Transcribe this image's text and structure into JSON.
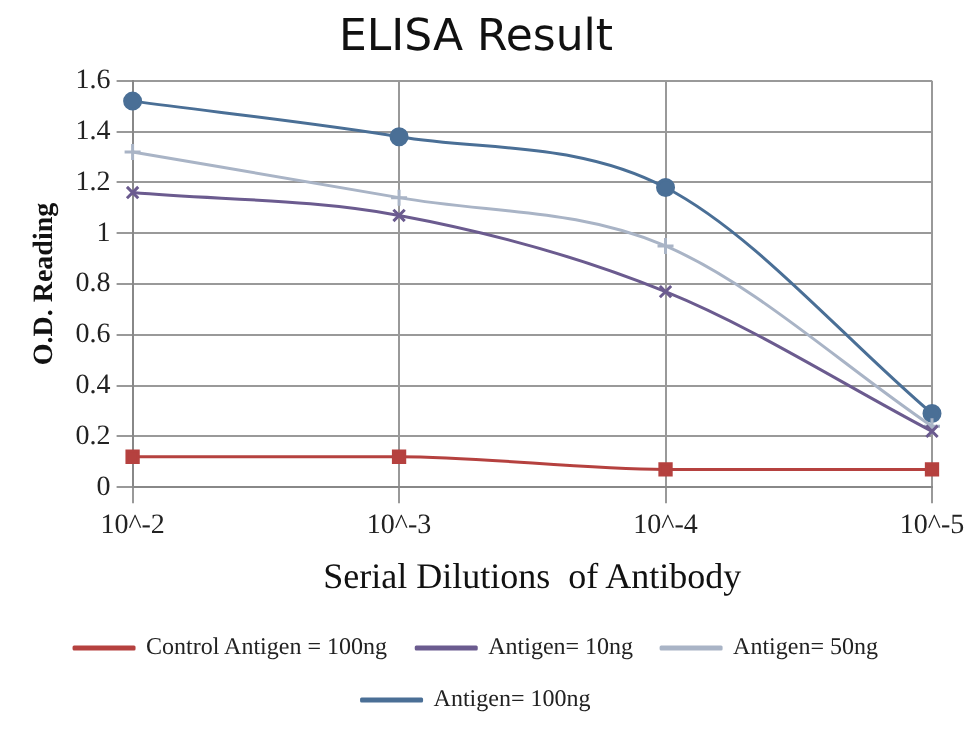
{
  "chart_data": {
    "type": "line",
    "title": "ELISA Result",
    "xlabel": "Serial Dilutions  of Antibody",
    "ylabel": "O.D. Reading",
    "categories": [
      "10^-2",
      "10^-3",
      "10^-4",
      "10^-5"
    ],
    "series": [
      {
        "name": "Control Antigen = 100ng",
        "color": "#b5413f",
        "marker": "square",
        "values": [
          0.12,
          0.12,
          0.07,
          0.07
        ]
      },
      {
        "name": "Antigen= 10ng",
        "color": "#6b5b8f",
        "marker": "cross",
        "values": [
          1.16,
          1.07,
          0.77,
          0.22
        ]
      },
      {
        "name": "Antigen= 50ng",
        "color": "#a9b4c6",
        "marker": "plus",
        "values": [
          1.32,
          1.14,
          0.95,
          0.24
        ]
      },
      {
        "name": "Antigen= 100ng",
        "color": "#4a6f96",
        "marker": "circle",
        "values": [
          1.52,
          1.38,
          1.18,
          0.29
        ]
      }
    ],
    "ylim": [
      0,
      1.6
    ],
    "yticks": [
      0,
      0.2,
      0.4,
      0.6,
      0.8,
      1,
      1.2,
      1.4,
      1.6
    ],
    "grid": true,
    "legend": "bottom",
    "line_style": "solid"
  }
}
